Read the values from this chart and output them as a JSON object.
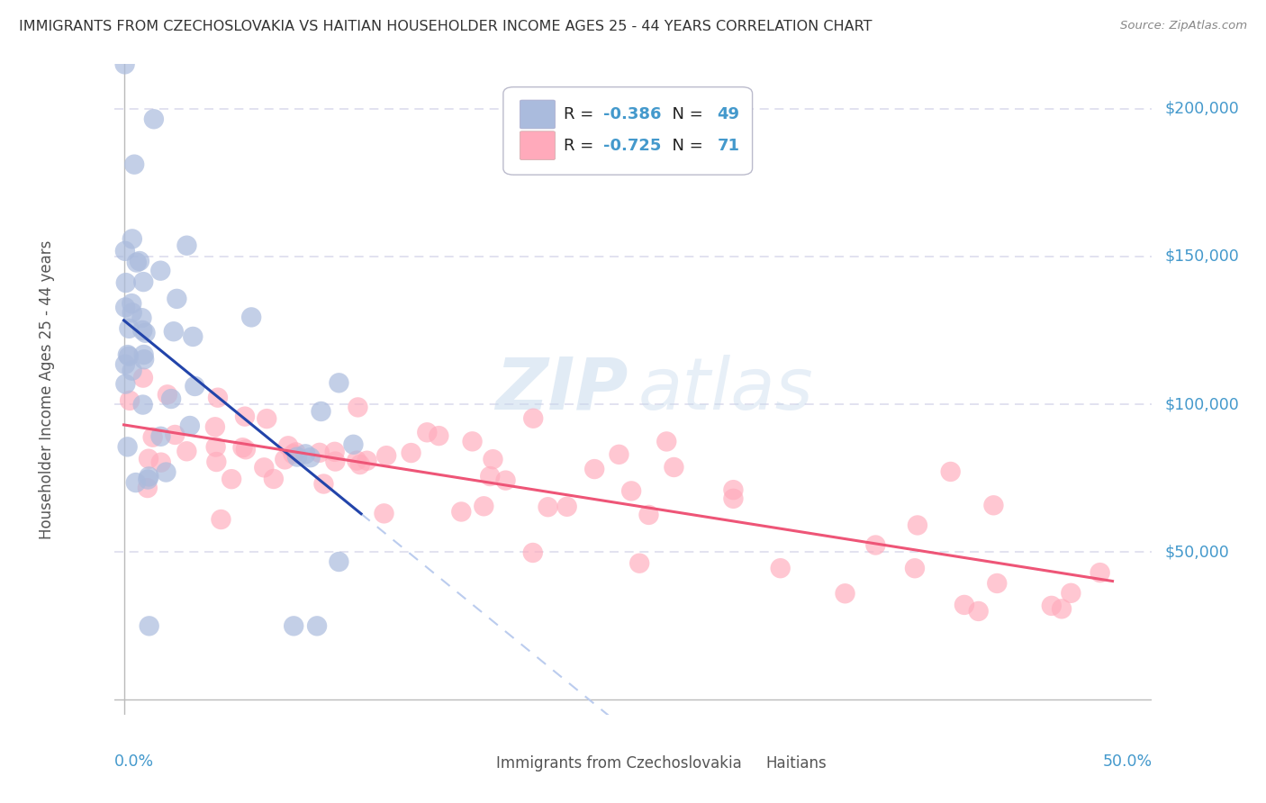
{
  "title": "IMMIGRANTS FROM CZECHOSLOVAKIA VS HAITIAN HOUSEHOLDER INCOME AGES 25 - 44 YEARS CORRELATION CHART",
  "source": "Source: ZipAtlas.com",
  "ylabel": "Householder Income Ages 25 - 44 years",
  "legend_blue_r_val": "-0.386",
  "legend_blue_n_val": "49",
  "legend_pink_r_val": "-0.725",
  "legend_pink_n_val": "71",
  "ylim": [
    -5000,
    215000
  ],
  "xlim": [
    -0.005,
    0.52
  ],
  "blue_color": "#AABBDD",
  "pink_color": "#FFAABB",
  "blue_line_color": "#2244AA",
  "pink_line_color": "#EE5577",
  "blue_dash_color": "#BBCCEE",
  "grid_color": "#DDDDEE",
  "background_color": "#FFFFFF",
  "watermark_zip": "ZIP",
  "watermark_atlas": "atlas",
  "label_color": "#4499CC",
  "text_color": "#333333",
  "source_color": "#888888",
  "blue_N": 49,
  "pink_N": 71
}
